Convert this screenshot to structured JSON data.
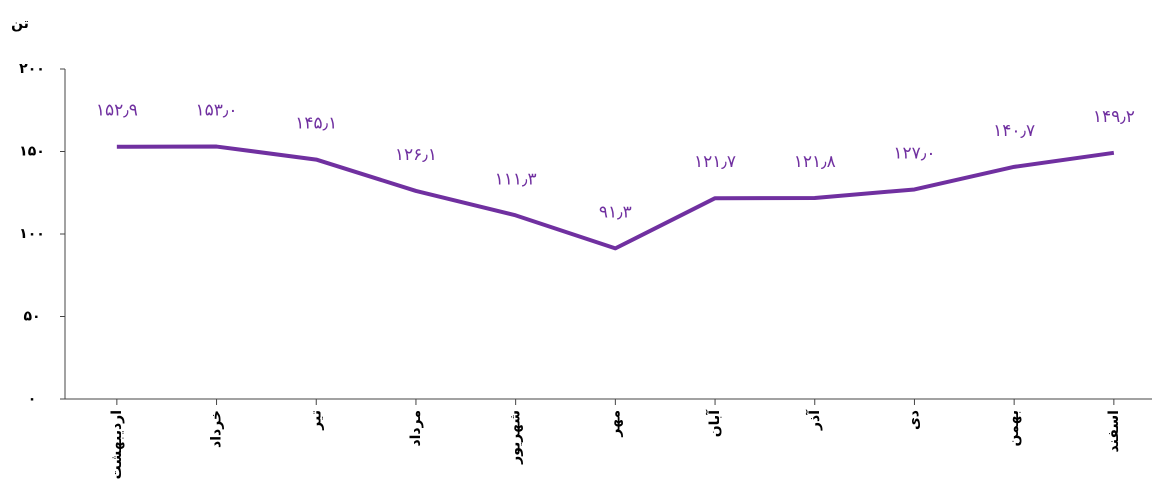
{
  "chart_data": {
    "type": "line",
    "y_label": "تن",
    "categories": [
      "اردیبهشت",
      "خرداد",
      "تیر",
      "مرداد",
      "شهریور",
      "مهر",
      "آبان",
      "آذر",
      "دی",
      "بهمن",
      "اسفند"
    ],
    "series": [
      {
        "color": "#7030a0",
        "values": [
          152.9,
          153.0,
          145.1,
          126.1,
          111.3,
          91.3,
          121.7,
          121.8,
          127.0,
          140.7,
          149.2
        ],
        "value_labels": [
          "۱۵۲٫۹",
          "۱۵۳٫۰",
          "۱۴۵٫۱",
          "۱۲۶٫۱",
          "۱۱۱٫۳",
          "۹۱٫۳",
          "۱۲۱٫۷",
          "۱۲۱٫۸",
          "۱۲۷٫۰",
          "۱۴۰٫۷",
          "۱۴۹٫۲"
        ]
      }
    ],
    "ylim": [
      0,
      200
    ],
    "yticks": [
      {
        "value": 0,
        "label": "۰"
      },
      {
        "value": 50,
        "label": "۵۰"
      },
      {
        "value": 100,
        "label": "۱۰۰"
      },
      {
        "value": 150,
        "label": "۱۵۰"
      },
      {
        "value": 200,
        "label": "۲۰۰"
      }
    ],
    "grid": false
  }
}
